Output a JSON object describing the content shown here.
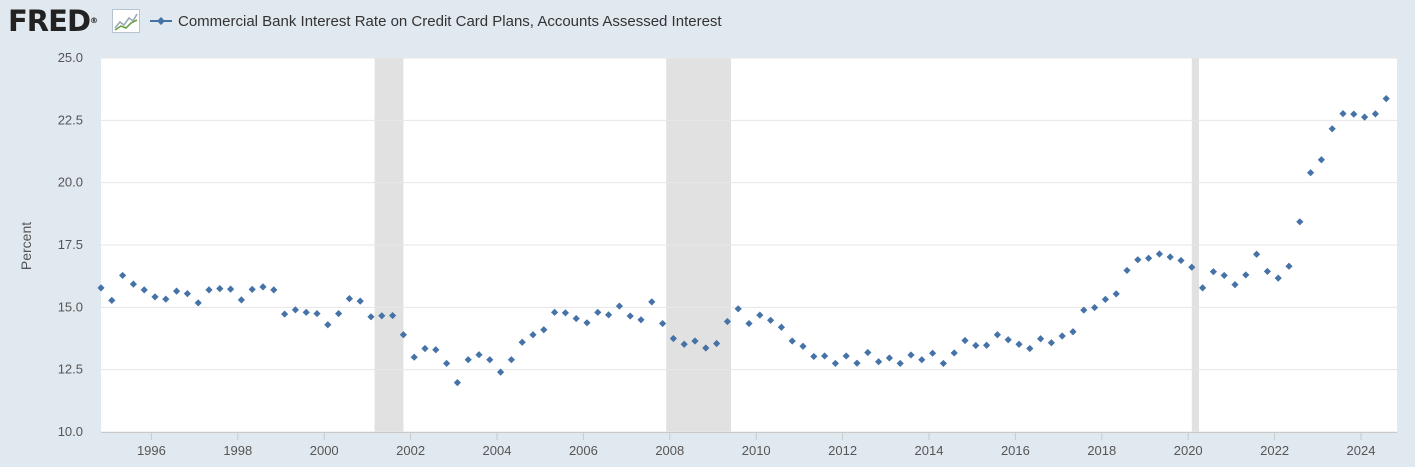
{
  "header": {
    "logo_text": "FRED",
    "logo_mark": "®",
    "logo_icon": "line-graph-icon",
    "series_title": "Commercial Bank Interest Rate on Credit Card Plans, Accounts Assessed Interest"
  },
  "colors": {
    "background": "#e1e9f0",
    "plot_bg": "#ffffff",
    "series": "#4572a7",
    "recession": "#e1e1e1",
    "grid": "#e6e6e6"
  },
  "chart_data": {
    "type": "scatter",
    "title": "Commercial Bank Interest Rate on Credit Card Plans, Accounts Assessed Interest",
    "ylabel": "Percent",
    "xlabel": "",
    "xlim": [
      "1994-11-01",
      "2024-11-01"
    ],
    "ylim": [
      10.0,
      25.0
    ],
    "yticks": [
      "10.0",
      "12.5",
      "15.0",
      "17.5",
      "20.0",
      "22.5",
      "25.0"
    ],
    "xticks": [
      "1996",
      "1998",
      "2000",
      "2002",
      "2004",
      "2006",
      "2008",
      "2010",
      "2012",
      "2014",
      "2016",
      "2018",
      "2020",
      "2022",
      "2024"
    ],
    "grid": true,
    "legend": "top-left",
    "recessions": [
      [
        "2001-03-01",
        "2001-11-01"
      ],
      [
        "2007-12-01",
        "2009-06-01"
      ],
      [
        "2020-02-01",
        "2020-04-01"
      ]
    ],
    "series": [
      {
        "name": "Commercial Bank Interest Rate on Credit Card Plans, Accounts Assessed Interest",
        "x": [
          "1994-11-01",
          "1995-02-01",
          "1995-05-01",
          "1995-08-01",
          "1995-11-01",
          "1996-02-01",
          "1996-05-01",
          "1996-08-01",
          "1996-11-01",
          "1997-02-01",
          "1997-05-01",
          "1997-08-01",
          "1997-11-01",
          "1998-02-01",
          "1998-05-01",
          "1998-08-01",
          "1998-11-01",
          "1999-02-01",
          "1999-05-01",
          "1999-08-01",
          "1999-11-01",
          "2000-02-01",
          "2000-05-01",
          "2000-08-01",
          "2000-11-01",
          "2001-02-01",
          "2001-05-01",
          "2001-08-01",
          "2001-11-01",
          "2002-02-01",
          "2002-05-01",
          "2002-08-01",
          "2002-11-01",
          "2003-02-01",
          "2003-05-01",
          "2003-08-01",
          "2003-11-01",
          "2004-02-01",
          "2004-05-01",
          "2004-08-01",
          "2004-11-01",
          "2005-02-01",
          "2005-05-01",
          "2005-08-01",
          "2005-11-01",
          "2006-02-01",
          "2006-05-01",
          "2006-08-01",
          "2006-11-01",
          "2007-02-01",
          "2007-05-01",
          "2007-08-01",
          "2007-11-01",
          "2008-02-01",
          "2008-05-01",
          "2008-08-01",
          "2008-11-01",
          "2009-02-01",
          "2009-05-01",
          "2009-08-01",
          "2009-11-01",
          "2010-02-01",
          "2010-05-01",
          "2010-08-01",
          "2010-11-01",
          "2011-02-01",
          "2011-05-01",
          "2011-08-01",
          "2011-11-01",
          "2012-02-01",
          "2012-05-01",
          "2012-08-01",
          "2012-11-01",
          "2013-02-01",
          "2013-05-01",
          "2013-08-01",
          "2013-11-01",
          "2014-02-01",
          "2014-05-01",
          "2014-08-01",
          "2014-11-01",
          "2015-02-01",
          "2015-05-01",
          "2015-08-01",
          "2015-11-01",
          "2016-02-01",
          "2016-05-01",
          "2016-08-01",
          "2016-11-01",
          "2017-02-01",
          "2017-05-01",
          "2017-08-01",
          "2017-11-01",
          "2018-02-01",
          "2018-05-01",
          "2018-08-01",
          "2018-11-01",
          "2019-02-01",
          "2019-05-01",
          "2019-08-01",
          "2019-11-01",
          "2020-02-01",
          "2020-05-01",
          "2020-08-01",
          "2020-11-01",
          "2021-02-01",
          "2021-05-01",
          "2021-08-01",
          "2021-11-01",
          "2022-02-01",
          "2022-05-01",
          "2022-08-01",
          "2022-11-01",
          "2023-02-01",
          "2023-05-01",
          "2023-08-01",
          "2023-11-01",
          "2024-02-01",
          "2024-05-01",
          "2024-08-01"
        ],
        "values": [
          15.78,
          15.28,
          16.28,
          15.93,
          15.7,
          15.42,
          15.33,
          15.65,
          15.55,
          15.18,
          15.7,
          15.75,
          15.73,
          15.3,
          15.72,
          15.82,
          15.7,
          14.73,
          14.9,
          14.8,
          14.75,
          14.3,
          14.75,
          15.35,
          15.25,
          14.62,
          14.66,
          14.67,
          13.9,
          13.0,
          13.35,
          13.3,
          12.75,
          11.98,
          12.9,
          13.1,
          12.9,
          12.4,
          12.9,
          13.6,
          13.9,
          14.1,
          14.8,
          14.78,
          14.55,
          14.38,
          14.8,
          14.7,
          15.05,
          14.65,
          14.5,
          15.22,
          14.35,
          13.75,
          13.52,
          13.65,
          13.37,
          13.55,
          14.43,
          14.94,
          14.35,
          14.69,
          14.48,
          14.2,
          13.65,
          13.44,
          13.03,
          13.05,
          12.75,
          13.05,
          12.76,
          13.19,
          12.82,
          12.97,
          12.75,
          13.09,
          12.9,
          13.16,
          12.75,
          13.17,
          13.67,
          13.47,
          13.48,
          13.9,
          13.7,
          13.52,
          13.35,
          13.74,
          13.58,
          13.85,
          14.02,
          14.89,
          14.99,
          15.32,
          15.54,
          16.48,
          16.91,
          16.97,
          17.14,
          17.02,
          16.88,
          16.61,
          15.78,
          16.43,
          16.28,
          15.91,
          16.3,
          17.13,
          16.44,
          16.17,
          16.65,
          18.43,
          20.4,
          20.92,
          22.16,
          22.77,
          22.75,
          22.63,
          22.76,
          23.37
        ]
      }
    ]
  }
}
